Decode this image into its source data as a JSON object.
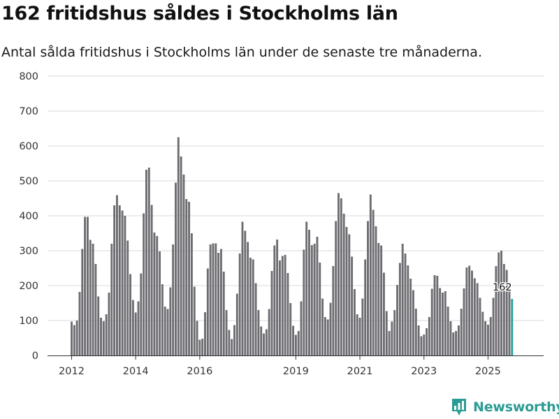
{
  "chart_data": {
    "type": "bar",
    "title": "162 fritidshus såldes i Stockholms län",
    "subtitle": "Antal sålda fritidshus i Stockholms län under de senaste tre månaderna.",
    "xlabel": "",
    "ylabel": "",
    "ylim": [
      0,
      800
    ],
    "yticks": [
      0,
      100,
      200,
      300,
      400,
      500,
      600,
      700,
      800
    ],
    "xticks": [
      "2012",
      "2014",
      "2016",
      "2019",
      "2021",
      "2023",
      "2025"
    ],
    "xtick_month_index": [
      0,
      24,
      48,
      84,
      108,
      132,
      156
    ],
    "start_month": "2011-12",
    "values": [
      97,
      87,
      100,
      182,
      305,
      397,
      397,
      331,
      320,
      262,
      169,
      108,
      98,
      118,
      180,
      320,
      430,
      459,
      430,
      415,
      400,
      329,
      233,
      159,
      123,
      155,
      235,
      407,
      532,
      538,
      431,
      352,
      342,
      298,
      204,
      140,
      133,
      195,
      318,
      495,
      625,
      570,
      518,
      448,
      440,
      350,
      197,
      99,
      45,
      48,
      124,
      249,
      318,
      321,
      321,
      294,
      305,
      240,
      130,
      73,
      47,
      87,
      177,
      292,
      383,
      357,
      325,
      280,
      275,
      207,
      130,
      83,
      63,
      75,
      133,
      242,
      315,
      332,
      272,
      285,
      288,
      236,
      150,
      85,
      59,
      70,
      155,
      303,
      383,
      360,
      316,
      320,
      340,
      266,
      163,
      110,
      103,
      151,
      256,
      385,
      465,
      450,
      406,
      368,
      347,
      283,
      190,
      118,
      108,
      163,
      275,
      385,
      461,
      417,
      370,
      322,
      315,
      237,
      127,
      70,
      97,
      130,
      202,
      265,
      320,
      292,
      258,
      220,
      187,
      134,
      86,
      55,
      60,
      78,
      110,
      191,
      230,
      228,
      193,
      180,
      184,
      140,
      98,
      66,
      70,
      86,
      134,
      192,
      252,
      257,
      243,
      221,
      207,
      165,
      125,
      98,
      88,
      110,
      165,
      256,
      295,
      300,
      262,
      245,
      188,
      162
    ],
    "highlight_label": "162",
    "bar_color": "#6d6c71",
    "highlight_color": "#25a09a"
  },
  "brand": {
    "name": "Newsworthy",
    "color": "#2b9b93",
    "icon": "bar-chart-pin-icon"
  }
}
